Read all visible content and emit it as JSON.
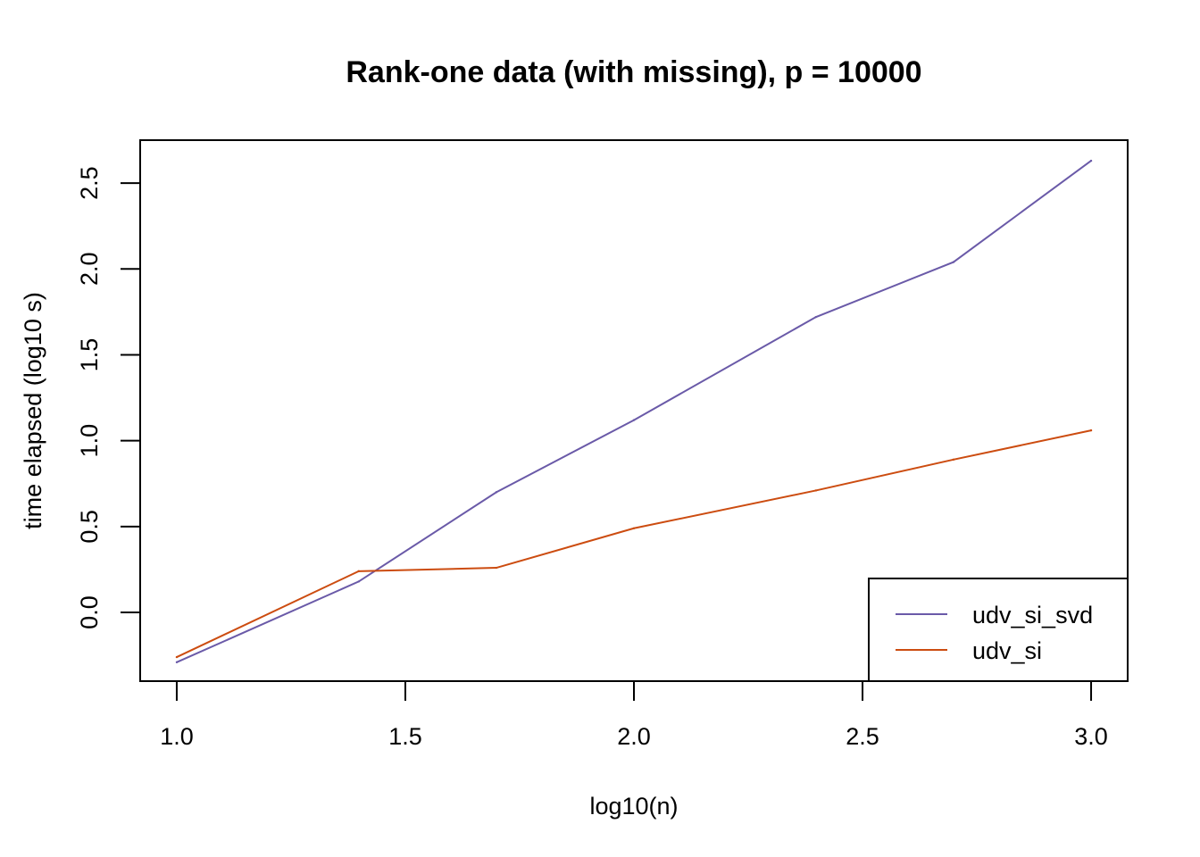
{
  "chart_data": {
    "type": "line",
    "title": "Rank-one data (with missing), p = 10000",
    "xlabel": "log10(n)",
    "ylabel": "time elapsed (log10 s)",
    "xlim": [
      0.92,
      3.08
    ],
    "ylim": [
      -0.4,
      2.75
    ],
    "x_ticks": [
      1.0,
      1.5,
      2.0,
      2.5,
      3.0
    ],
    "x_tick_labels": [
      "1.0",
      "1.5",
      "2.0",
      "2.5",
      "3.0"
    ],
    "y_ticks": [
      0.0,
      0.5,
      1.0,
      1.5,
      2.0,
      2.5
    ],
    "y_tick_labels": [
      "0.0",
      "0.5",
      "1.0",
      "1.5",
      "2.0",
      "2.5"
    ],
    "grid": false,
    "legend_position": "bottom-right",
    "x": [
      1.0,
      1.398,
      1.699,
      2.0,
      2.398,
      2.699,
      3.0
    ],
    "series": [
      {
        "name": "udv_si_svd",
        "color": "#6a5aa8",
        "values": [
          -0.29,
          0.18,
          0.7,
          1.12,
          1.72,
          2.04,
          2.63
        ]
      },
      {
        "name": "udv_si",
        "color": "#cc4c10",
        "values": [
          -0.26,
          0.24,
          0.26,
          0.49,
          0.71,
          0.89,
          1.06
        ]
      }
    ]
  }
}
